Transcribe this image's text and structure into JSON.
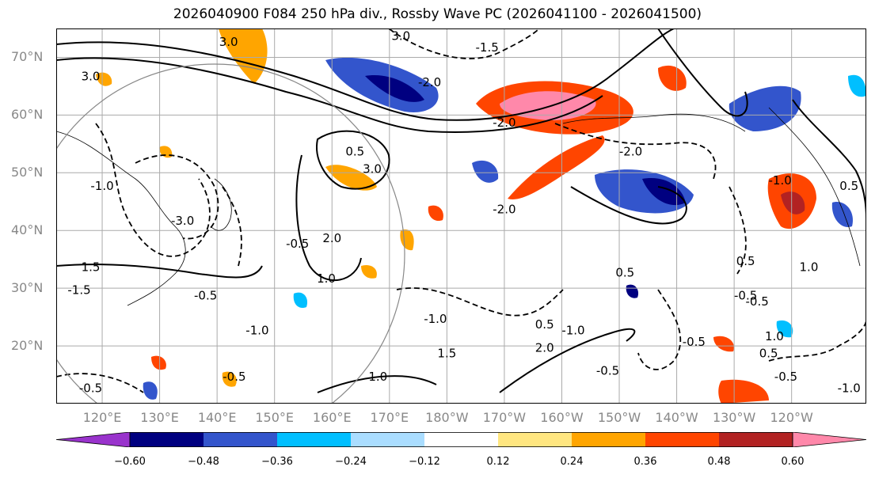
{
  "map": {
    "title": "2026040900 F084 250 hPa div., Rossby Wave PC (2026041100 - 2026041500)",
    "lat_labels": [
      "70°N",
      "60°N",
      "50°N",
      "40°N",
      "30°N",
      "20°N"
    ],
    "lat_values": [
      70,
      60,
      50,
      40,
      30,
      20
    ],
    "lon_labels": [
      "120°E",
      "130°E",
      "140°E",
      "150°E",
      "160°E",
      "170°E",
      "180°W",
      "170°W",
      "160°W",
      "150°W",
      "140°W",
      "130°W",
      "120°W"
    ],
    "lon_values": [
      120,
      130,
      140,
      150,
      160,
      170,
      180,
      190,
      200,
      210,
      220,
      230,
      240
    ],
    "extent": {
      "lon_min": 112,
      "lon_max": 253,
      "lat_min": 10,
      "lat_max": 75
    },
    "contour_labels": [
      {
        "text": "3.0",
        "lon": 118,
        "lat": 66
      },
      {
        "text": "3.0",
        "lon": 142,
        "lat": 72
      },
      {
        "text": "3.0",
        "lon": 172,
        "lat": 73
      },
      {
        "text": "-1.5",
        "lon": 187,
        "lat": 71
      },
      {
        "text": "-2.0",
        "lon": 177,
        "lat": 65
      },
      {
        "text": "-2.0",
        "lon": 190,
        "lat": 58
      },
      {
        "text": "-2.0",
        "lon": 212,
        "lat": 53
      },
      {
        "text": "3.0",
        "lon": 167,
        "lat": 50
      },
      {
        "text": "0.5",
        "lon": 164,
        "lat": 53
      },
      {
        "text": "-2.0",
        "lon": 190,
        "lat": 43
      },
      {
        "text": "-3.0",
        "lon": 134,
        "lat": 41
      },
      {
        "text": "-1.0",
        "lon": 120,
        "lat": 47
      },
      {
        "text": "1.5",
        "lon": 118,
        "lat": 33
      },
      {
        "text": "-1.5",
        "lon": 116,
        "lat": 29
      },
      {
        "text": "-0.5",
        "lon": 138,
        "lat": 28
      },
      {
        "text": "-1.0",
        "lon": 147,
        "lat": 22
      },
      {
        "text": "-0.5",
        "lon": 154,
        "lat": 37
      },
      {
        "text": "1.0",
        "lon": 159,
        "lat": 31
      },
      {
        "text": "2.0",
        "lon": 160,
        "lat": 38
      },
      {
        "text": "-1.0",
        "lon": 178,
        "lat": 24
      },
      {
        "text": "1.5",
        "lon": 180,
        "lat": 18
      },
      {
        "text": "0.5",
        "lon": 197,
        "lat": 23
      },
      {
        "text": "2.0",
        "lon": 197,
        "lat": 19
      },
      {
        "text": "-1.0",
        "lon": 202,
        "lat": 22
      },
      {
        "text": "-0.5",
        "lon": 208,
        "lat": 15
      },
      {
        "text": "-0.5",
        "lon": 223,
        "lat": 20
      },
      {
        "text": "1.0",
        "lon": 237,
        "lat": 21
      },
      {
        "text": "0.5",
        "lon": 236,
        "lat": 18
      },
      {
        "text": "-0.5",
        "lon": 239,
        "lat": 14
      },
      {
        "text": "-1.0",
        "lon": 250,
        "lat": 12
      },
      {
        "text": "0.5",
        "lon": 232,
        "lat": 34
      },
      {
        "text": "1.0",
        "lon": 243,
        "lat": 33
      },
      {
        "text": "0.5",
        "lon": 250,
        "lat": 47
      },
      {
        "text": "-1.0",
        "lon": 238,
        "lat": 48
      },
      {
        "text": "-0.5",
        "lon": 232,
        "lat": 28
      },
      {
        "text": "-0.5",
        "lon": 118,
        "lat": 12
      },
      {
        "text": "1.0",
        "lon": 168,
        "lat": 14
      },
      {
        "text": "-0.5",
        "lon": 143,
        "lat": 14
      },
      {
        "text": "0.5",
        "lon": 211,
        "lat": 32
      },
      {
        "text": "-0.5",
        "lon": 234,
        "lat": 27
      }
    ]
  },
  "colorbar": {
    "tick_labels": [
      "−0.60",
      "−0.48",
      "−0.36",
      "−0.24",
      "−0.12",
      "0.12",
      "0.24",
      "0.36",
      "0.48",
      "0.60"
    ],
    "tick_values": [
      -0.6,
      -0.48,
      -0.36,
      -0.24,
      -0.12,
      0.12,
      0.24,
      0.36,
      0.48,
      0.6
    ],
    "colors": [
      "#9933cc",
      "#000080",
      "#3355cc",
      "#00bfff",
      "#aaddff",
      "#ffffff",
      "#ffe680",
      "#ffa500",
      "#ff4500",
      "#b22222",
      "#ff88aa"
    ]
  }
}
